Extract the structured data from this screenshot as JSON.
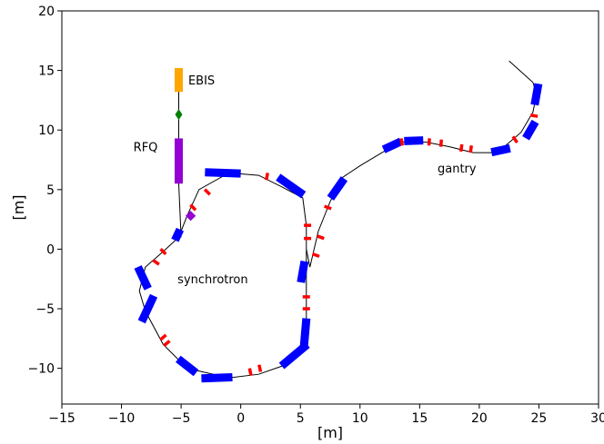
{
  "chart_data": {
    "type": "line",
    "title": "",
    "xlabel": "[m]",
    "ylabel": "[m]",
    "xlim": [
      -15,
      30
    ],
    "ylim": [
      -13,
      20
    ],
    "xticks": [
      -15,
      -10,
      -5,
      0,
      5,
      10,
      15,
      20,
      25,
      30
    ],
    "yticks": [
      -10,
      -5,
      0,
      5,
      10,
      15,
      20
    ],
    "xtick_labels": [
      "−15",
      "−10",
      "−5",
      "0",
      "5",
      "10",
      "15",
      "20",
      "25",
      "30"
    ],
    "ytick_labels": [
      "−10",
      "−5",
      "0",
      "5",
      "10",
      "15",
      "20"
    ],
    "grid": false,
    "colors": {
      "beamline": "#000000",
      "dipole": "#0000ff",
      "quadrupole": "#ff0000",
      "ebis": "#ffa500",
      "rfq": "#9400d3",
      "diamond": "#008000",
      "purple_element": "#9400d3"
    },
    "annotations": [
      {
        "text": "EBIS",
        "x": -4.4,
        "y": 14.2
      },
      {
        "text": "RFQ",
        "x": -9.0,
        "y": 8.6
      },
      {
        "text": "synchrotron",
        "x": -5.3,
        "y": -2.5
      },
      {
        "text": "gantry",
        "x": 16.5,
        "y": 6.8
      }
    ],
    "series": [
      {
        "role": "injection line",
        "x": [
          -5.2,
          -5.2,
          -5.2,
          -5.2,
          -5.0
        ],
        "y": [
          15.0,
          13.2,
          11.3,
          5.5,
          1.0
        ]
      },
      {
        "role": "ring",
        "x": [
          -5.2,
          -4.5,
          -3.5,
          -1.0,
          1.5,
          3.5,
          5.2,
          5.5,
          5.5,
          5.5,
          5.5,
          5.2,
          3.5,
          1.5,
          -1.0,
          -4.5,
          -6.5,
          -8.0,
          -8.5,
          -8.0,
          -6.5,
          -5.2
        ],
        "y": [
          1.0,
          2.8,
          5.0,
          6.4,
          6.2,
          5.2,
          4.3,
          2.0,
          -1.0,
          -4.0,
          -6.5,
          -8.5,
          -9.8,
          -10.5,
          -10.8,
          -10.0,
          -8.0,
          -5.2,
          -3.5,
          -1.5,
          -0.2,
          1.0
        ]
      },
      {
        "role": "gantry line",
        "x": [
          5.5,
          5.8,
          6.5,
          7.5,
          8.5,
          10.0,
          12.5,
          13.5,
          15.5,
          17.5,
          19.5,
          21.5,
          23.5,
          24.5,
          24.8,
          24.5,
          22.5
        ],
        "y": [
          0.0,
          -1.5,
          1.5,
          4.0,
          6.0,
          7.0,
          8.5,
          9.0,
          9.0,
          8.6,
          8.1,
          8.1,
          9.8,
          11.5,
          13.0,
          14.0,
          15.8
        ]
      }
    ],
    "elements": [
      {
        "kind": "ebis",
        "x": -5.2,
        "y": 14.2,
        "len": 2.0,
        "angle": 90
      },
      {
        "kind": "diamond",
        "x": -5.2,
        "y": 11.3
      },
      {
        "kind": "rfq",
        "x": -5.2,
        "y": 7.4,
        "len": 3.8,
        "angle": 90
      },
      {
        "kind": "purple_element",
        "x": -4.2,
        "y": 2.8,
        "len": 0.6,
        "angle": 45
      },
      {
        "kind": "dipole",
        "x": -5.3,
        "y": 1.2,
        "len": 1.0,
        "angle": 65
      },
      {
        "kind": "dipole",
        "x": -1.5,
        "y": 6.4,
        "len": 3.0,
        "angle": -2
      },
      {
        "kind": "dipole",
        "x": 4.2,
        "y": 5.3,
        "len": 2.6,
        "angle": -35
      },
      {
        "kind": "dipole",
        "x": 2.5,
        "y": 6.3,
        "len": 0.4,
        "angle": 0,
        "hidden": true
      },
      {
        "kind": "dipole",
        "x": 5.2,
        "y": -1.9,
        "len": 1.8,
        "angle": 80
      },
      {
        "kind": "dipole",
        "x": 5.4,
        "y": -7.0,
        "len": 2.4,
        "angle": 85
      },
      {
        "kind": "dipole",
        "x": 4.5,
        "y": -8.9,
        "len": 2.8,
        "angle": 40
      },
      {
        "kind": "dipole",
        "x": -2.0,
        "y": -10.8,
        "len": 2.6,
        "angle": 2
      },
      {
        "kind": "dipole",
        "x": -4.5,
        "y": -9.8,
        "len": 1.9,
        "angle": -38
      },
      {
        "kind": "dipole",
        "x": -7.8,
        "y": -5.0,
        "len": 2.4,
        "angle": 65
      },
      {
        "kind": "dipole",
        "x": -8.2,
        "y": -2.4,
        "len": 2.0,
        "angle": -65
      },
      {
        "kind": "dipole",
        "x": 8.1,
        "y": 5.1,
        "len": 2.0,
        "angle": 55
      },
      {
        "kind": "dipole",
        "x": 12.7,
        "y": 8.7,
        "len": 1.6,
        "angle": 25
      },
      {
        "kind": "dipole",
        "x": 14.5,
        "y": 9.1,
        "len": 1.6,
        "angle": 2
      },
      {
        "kind": "dipole",
        "x": 21.8,
        "y": 8.3,
        "len": 1.6,
        "angle": 12
      },
      {
        "kind": "dipole",
        "x": 24.3,
        "y": 10.0,
        "len": 1.6,
        "angle": 60
      },
      {
        "kind": "dipole",
        "x": 24.8,
        "y": 13.0,
        "len": 1.8,
        "angle": 80
      },
      {
        "kind": "quad",
        "x": -4.0,
        "y": 3.5,
        "angle": 45
      },
      {
        "kind": "quad",
        "x": -2.8,
        "y": 4.8,
        "angle": 45
      },
      {
        "kind": "quad",
        "x": -6.5,
        "y": -0.2,
        "angle": 45
      },
      {
        "kind": "quad",
        "x": -7.1,
        "y": -1.1,
        "angle": 55
      },
      {
        "kind": "quad",
        "x": 2.2,
        "y": 6.1,
        "angle": -10
      },
      {
        "kind": "quad",
        "x": 5.6,
        "y": 2.0,
        "angle": 90
      },
      {
        "kind": "quad",
        "x": 5.6,
        "y": 0.9,
        "angle": 90
      },
      {
        "kind": "quad",
        "x": 5.5,
        "y": -4.0,
        "angle": 90
      },
      {
        "kind": "quad",
        "x": 5.5,
        "y": -5.0,
        "angle": 90
      },
      {
        "kind": "quad",
        "x": 0.8,
        "y": -10.3,
        "angle": 12
      },
      {
        "kind": "quad",
        "x": 1.6,
        "y": -10.0,
        "angle": 12
      },
      {
        "kind": "quad",
        "x": -6.5,
        "y": -7.4,
        "angle": -50
      },
      {
        "kind": "quad",
        "x": -6.2,
        "y": -7.9,
        "angle": -50
      },
      {
        "kind": "quad",
        "x": 6.3,
        "y": -0.5,
        "angle": 70
      },
      {
        "kind": "quad",
        "x": 6.7,
        "y": 1.0,
        "angle": 70
      },
      {
        "kind": "quad",
        "x": 7.3,
        "y": 3.5,
        "angle": 70
      },
      {
        "kind": "quad",
        "x": 13.5,
        "y": 9.0,
        "angle": 10
      },
      {
        "kind": "quad",
        "x": 15.8,
        "y": 9.0,
        "angle": -5
      },
      {
        "kind": "quad",
        "x": 16.8,
        "y": 8.9,
        "angle": -5
      },
      {
        "kind": "quad",
        "x": 18.5,
        "y": 8.5,
        "angle": -8
      },
      {
        "kind": "quad",
        "x": 19.3,
        "y": 8.4,
        "angle": -8
      },
      {
        "kind": "quad",
        "x": 23.0,
        "y": 9.2,
        "angle": 35
      },
      {
        "kind": "quad",
        "x": 24.6,
        "y": 11.2,
        "angle": 80
      }
    ]
  }
}
